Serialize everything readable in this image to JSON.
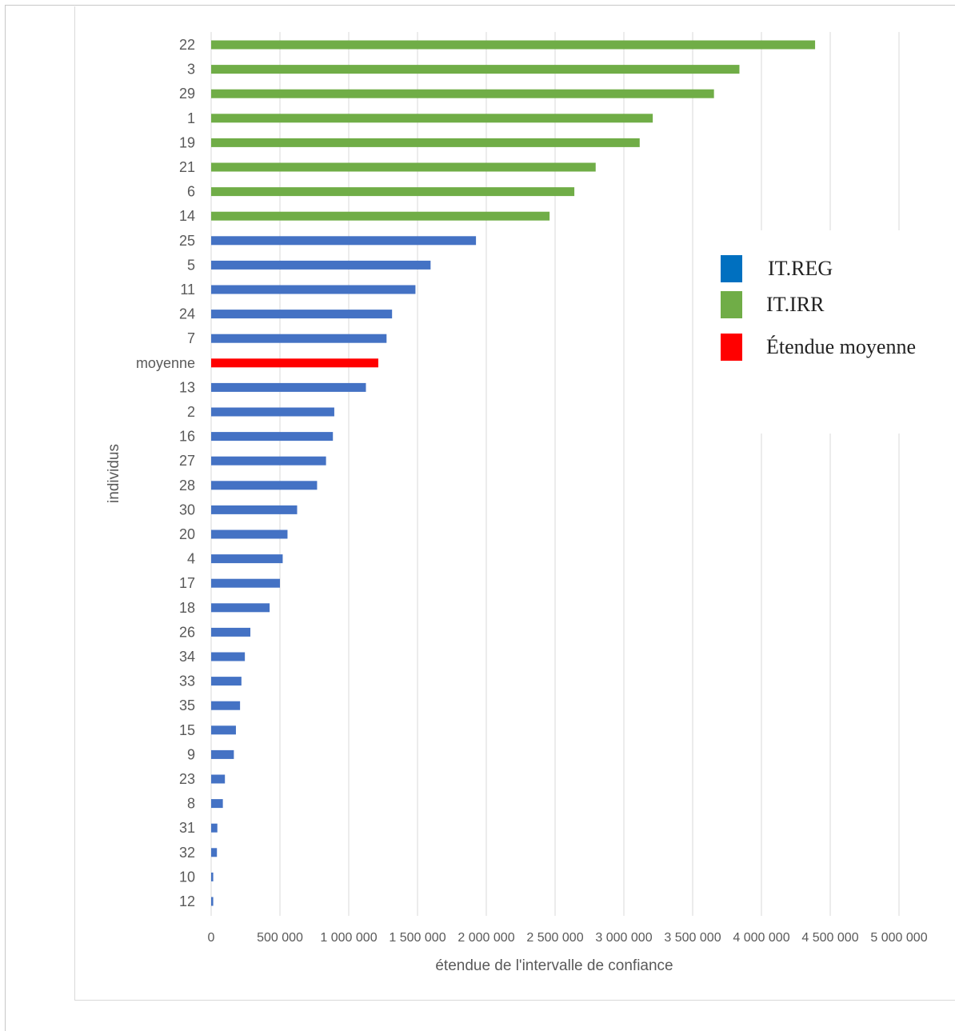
{
  "chart_data": {
    "type": "bar",
    "orientation": "horizontal",
    "xlabel": "étendue de l'intervalle de confiance",
    "ylabel": "individus",
    "xlim": [
      0,
      5000000
    ],
    "x_ticks": [
      0,
      500000,
      1000000,
      1500000,
      2000000,
      2500000,
      3000000,
      3500000,
      4000000,
      4500000,
      5000000
    ],
    "x_tick_labels": [
      "0",
      "500 000",
      "1 000 000",
      "1 500 000",
      "2 000 000",
      "2 500 000",
      "3 000 000",
      "3 500 000",
      "4 000 000",
      "4 500 000",
      "5 000 000"
    ],
    "grid": "vertical",
    "legend_position": "right",
    "colors": {
      "IT.REG": "#4472c4",
      "IT.IRR": "#70ad47",
      "moyenne": "#ff0000"
    },
    "categories": [
      "22",
      "3",
      "29",
      "1",
      "19",
      "21",
      "6",
      "14",
      "25",
      "5",
      "11",
      "24",
      "7",
      "moyenne",
      "13",
      "2",
      "16",
      "27",
      "28",
      "30",
      "20",
      "4",
      "17",
      "18",
      "26",
      "34",
      "33",
      "35",
      "15",
      "9",
      "23",
      "8",
      "31",
      "32",
      "10",
      "12"
    ],
    "values": [
      4390000,
      3840000,
      3655000,
      3210000,
      3115000,
      2795000,
      2640000,
      2460000,
      1925000,
      1595000,
      1485000,
      1315000,
      1275000,
      1215000,
      1125000,
      895000,
      885000,
      835000,
      770000,
      625000,
      555000,
      520000,
      500000,
      425000,
      285000,
      245000,
      220000,
      210000,
      180000,
      165000,
      100000,
      85000,
      45000,
      42000,
      15000,
      15000
    ],
    "groups": [
      "IT.IRR",
      "IT.IRR",
      "IT.IRR",
      "IT.IRR",
      "IT.IRR",
      "IT.IRR",
      "IT.IRR",
      "IT.IRR",
      "IT.REG",
      "IT.REG",
      "IT.REG",
      "IT.REG",
      "IT.REG",
      "moyenne",
      "IT.REG",
      "IT.REG",
      "IT.REG",
      "IT.REG",
      "IT.REG",
      "IT.REG",
      "IT.REG",
      "IT.REG",
      "IT.REG",
      "IT.REG",
      "IT.REG",
      "IT.REG",
      "IT.REG",
      "IT.REG",
      "IT.REG",
      "IT.REG",
      "IT.REG",
      "IT.REG",
      "IT.REG",
      "IT.REG",
      "IT.REG",
      "IT.REG"
    ],
    "legend": [
      {
        "label": "IT.REG",
        "color": "#0070c0"
      },
      {
        "label": "IT.IRR",
        "color": "#70ad47"
      },
      {
        "label": "Étendue moyenne",
        "color": "#ff0000"
      }
    ]
  }
}
